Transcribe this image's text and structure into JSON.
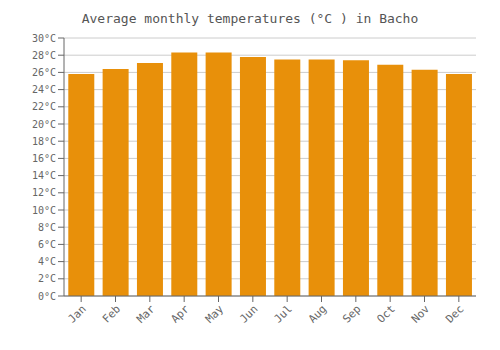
{
  "chart_data": {
    "type": "bar",
    "title": "Average monthly temperatures (°C ) in Bacho",
    "categories": [
      "Jan",
      "Feb",
      "Mar",
      "Apr",
      "May",
      "Jun",
      "Jul",
      "Aug",
      "Sep",
      "Oct",
      "Nov",
      "Dec"
    ],
    "values": [
      25.8,
      26.4,
      27.1,
      28.3,
      28.3,
      27.8,
      27.5,
      27.5,
      27.4,
      26.9,
      26.3,
      25.8
    ],
    "color": "#E8900A",
    "ylim": [
      0,
      30
    ],
    "yticks": [
      {
        "value": 0,
        "label": "0°C"
      },
      {
        "value": 2,
        "label": "2°C"
      },
      {
        "value": 4,
        "label": "4°C"
      },
      {
        "value": 6,
        "label": "6°C"
      },
      {
        "value": 8,
        "label": "8°C"
      },
      {
        "value": 10,
        "label": "10°C"
      },
      {
        "value": 12,
        "label": "12°C"
      },
      {
        "value": 14,
        "label": "14°C"
      },
      {
        "value": 16,
        "label": "16°C"
      },
      {
        "value": 18,
        "label": "18°C"
      },
      {
        "value": 20,
        "label": "20°C"
      },
      {
        "value": 22,
        "label": "22°C"
      },
      {
        "value": 24,
        "label": "24°C"
      },
      {
        "value": 26,
        "label": "26°C"
      },
      {
        "value": 28,
        "label": "28°C"
      },
      {
        "value": 30,
        "label": "30°C"
      }
    ],
    "grid": true
  }
}
